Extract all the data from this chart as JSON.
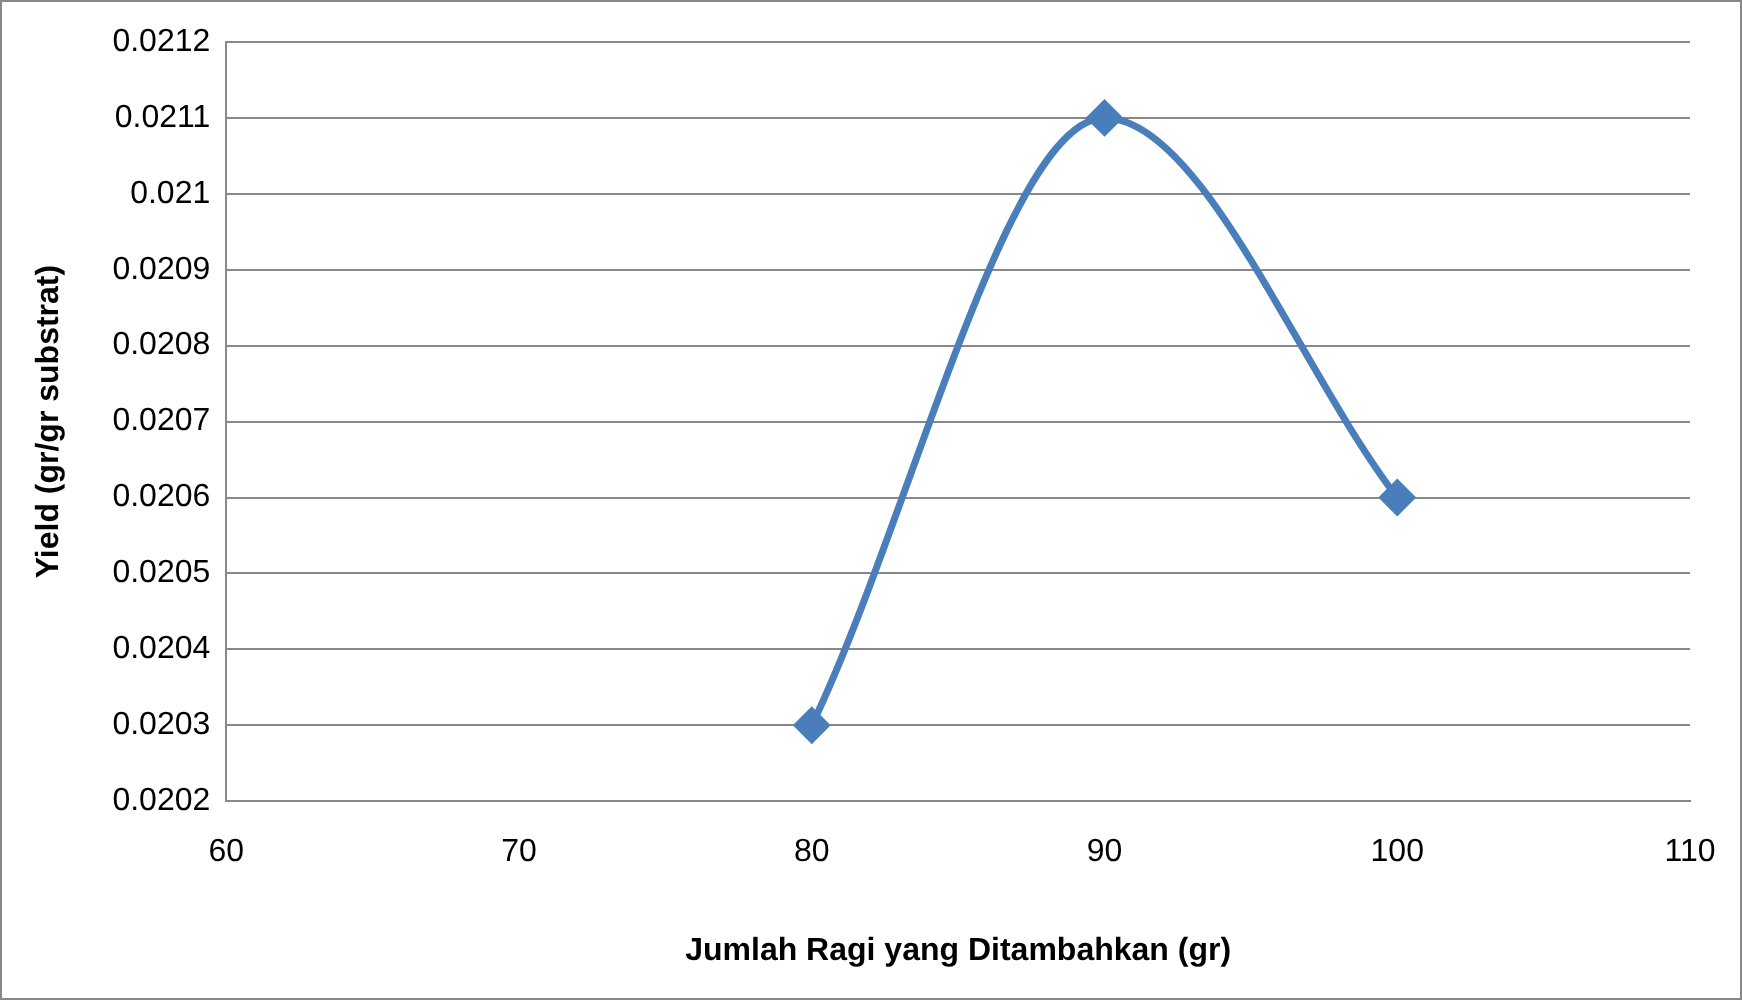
{
  "chart_data": {
    "type": "line",
    "xlabel": "Jumlah Ragi yang Ditambahkan (gr)",
    "ylabel": "Yield (gr/gr substrat)",
    "x": [
      80,
      90,
      100
    ],
    "series": [
      {
        "color": "#4a7ebb",
        "values": [
          0.0203,
          0.0211,
          0.0206
        ]
      }
    ],
    "xlim": [
      60,
      110
    ],
    "xticks": [
      60,
      70,
      80,
      90,
      100,
      110
    ],
    "ylim": [
      0.0202,
      0.0212
    ],
    "yticks": [
      0.0202,
      0.0203,
      0.0204,
      0.0205,
      0.0206,
      0.0207,
      0.0208,
      0.0209,
      0.021,
      0.0211,
      0.0212
    ],
    "grid": "y",
    "marker": "diamond",
    "line_style": "solid",
    "legend": false
  }
}
